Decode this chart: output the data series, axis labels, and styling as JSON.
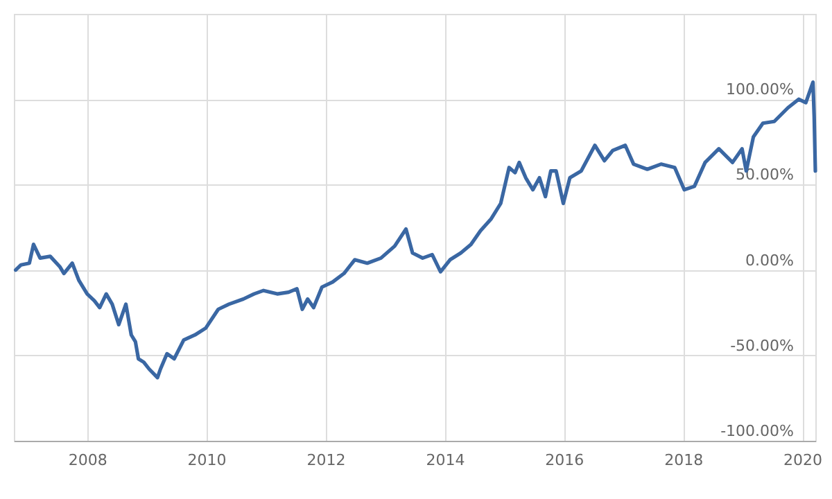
{
  "chart_data": {
    "type": "line",
    "xlim": [
      2006.77,
      2020.22
    ],
    "ylim": [
      -100,
      150
    ],
    "xticks": [
      2008,
      2010,
      2012,
      2014,
      2016,
      2018,
      2020
    ],
    "yticks": [
      {
        "value": -100,
        "label": "-100.00%"
      },
      {
        "value": -50,
        "label": "-50.00%"
      },
      {
        "value": 0,
        "label": "0.00%"
      },
      {
        "value": 50,
        "label": "50.00%"
      },
      {
        "value": 100,
        "label": "100.00%"
      }
    ],
    "grid": true,
    "legend": false,
    "x": [
      2006.8,
      2006.89,
      2007.03,
      2007.1,
      2007.21,
      2007.38,
      2007.54,
      2007.61,
      2007.75,
      2007.86,
      2008.0,
      2008.12,
      2008.21,
      2008.32,
      2008.42,
      2008.53,
      2008.65,
      2008.74,
      2008.81,
      2008.86,
      2008.95,
      2009.04,
      2009.18,
      2009.23,
      2009.34,
      2009.46,
      2009.62,
      2009.81,
      2009.99,
      2010.2,
      2010.38,
      2010.62,
      2010.8,
      2010.96,
      2011.19,
      2011.38,
      2011.52,
      2011.61,
      2011.7,
      2011.8,
      2011.94,
      2012.12,
      2012.31,
      2012.49,
      2012.7,
      2012.93,
      2013.16,
      2013.35,
      2013.46,
      2013.63,
      2013.79,
      2013.93,
      2014.09,
      2014.27,
      2014.44,
      2014.6,
      2014.78,
      2014.94,
      2015.08,
      2015.18,
      2015.25,
      2015.36,
      2015.48,
      2015.59,
      2015.69,
      2015.78,
      2015.87,
      2015.99,
      2016.1,
      2016.29,
      2016.52,
      2016.68,
      2016.82,
      2017.03,
      2017.17,
      2017.4,
      2017.63,
      2017.86,
      2018.02,
      2018.19,
      2018.37,
      2018.6,
      2018.83,
      2018.99,
      2019.06,
      2019.18,
      2019.34,
      2019.53,
      2019.76,
      2019.94,
      2020.06,
      2020.18,
      2020.2,
      2020.22
    ],
    "series": [
      {
        "color": "#3a67a3",
        "values": [
          0,
          3,
          4,
          15,
          7,
          8,
          2,
          -2,
          4,
          -6,
          -14,
          -18,
          -22,
          -14,
          -20,
          -32,
          -20,
          -38,
          -42,
          -52,
          -54,
          -58,
          -63,
          -58,
          -49,
          -52,
          -41,
          -38,
          -34,
          -23,
          -20,
          -17,
          -14,
          -12,
          -14,
          -13,
          -11,
          -23,
          -17,
          -22,
          -10,
          -7,
          -2,
          6,
          4,
          7,
          14,
          24,
          10,
          7,
          9,
          -1,
          6,
          10,
          15,
          23,
          30,
          39,
          60,
          57,
          63,
          54,
          47,
          54,
          43,
          58,
          58,
          39,
          54,
          58,
          73,
          64,
          70,
          73,
          62,
          59,
          62,
          60,
          47,
          49,
          63,
          71,
          63,
          71,
          58,
          78,
          86,
          87,
          95,
          100,
          98,
          110,
          90,
          58
        ]
      }
    ]
  }
}
